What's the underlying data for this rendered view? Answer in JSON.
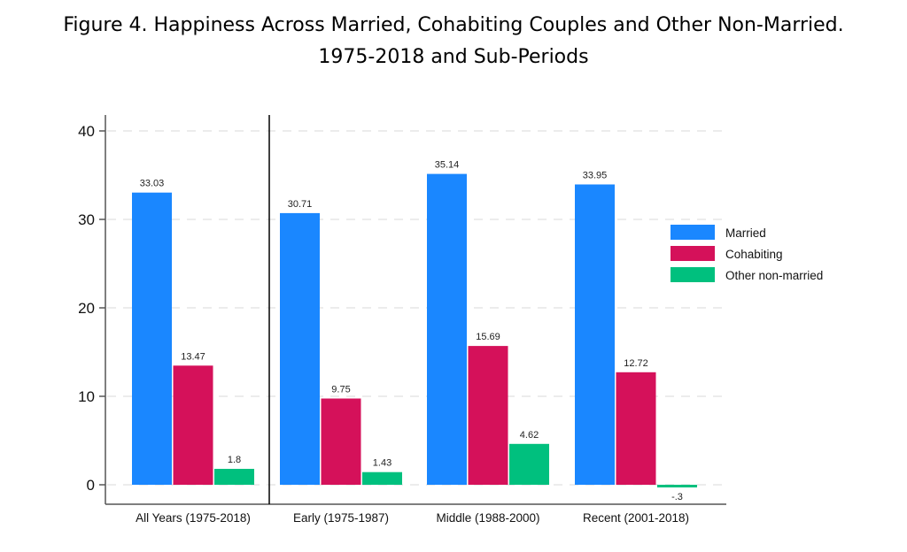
{
  "chart_data": {
    "type": "bar",
    "title": "Figure 4.  Happiness Across Married, Cohabiting Couples and Other Non-Married.",
    "subtitle": "1975-2018 and Sub-Periods",
    "xlabel": "",
    "ylabel": "",
    "ylim": [
      0,
      40
    ],
    "yticks": [
      0,
      10,
      20,
      30,
      40
    ],
    "grid": true,
    "legend_position": "right",
    "categories": [
      "All Years (1975-2018)",
      "Early (1975-1987)",
      "Middle (1988-2000)",
      "Recent (2001-2018)"
    ],
    "series": [
      {
        "name": "Married",
        "color": "#1a87ff",
        "values": [
          33.03,
          30.71,
          35.14,
          33.95
        ],
        "labels": [
          "33.03",
          "30.71",
          "35.14",
          "33.95"
        ]
      },
      {
        "name": "Cohabiting",
        "color": "#d5115a",
        "values": [
          13.47,
          9.75,
          15.69,
          12.72
        ],
        "labels": [
          "13.47",
          "9.75",
          "15.69",
          "12.72"
        ]
      },
      {
        "name": "Other non-married",
        "color": "#00c07e",
        "values": [
          1.8,
          1.43,
          4.62,
          -0.3
        ],
        "labels": [
          "1.8",
          "1.43",
          "4.62",
          "-.3"
        ]
      }
    ]
  }
}
